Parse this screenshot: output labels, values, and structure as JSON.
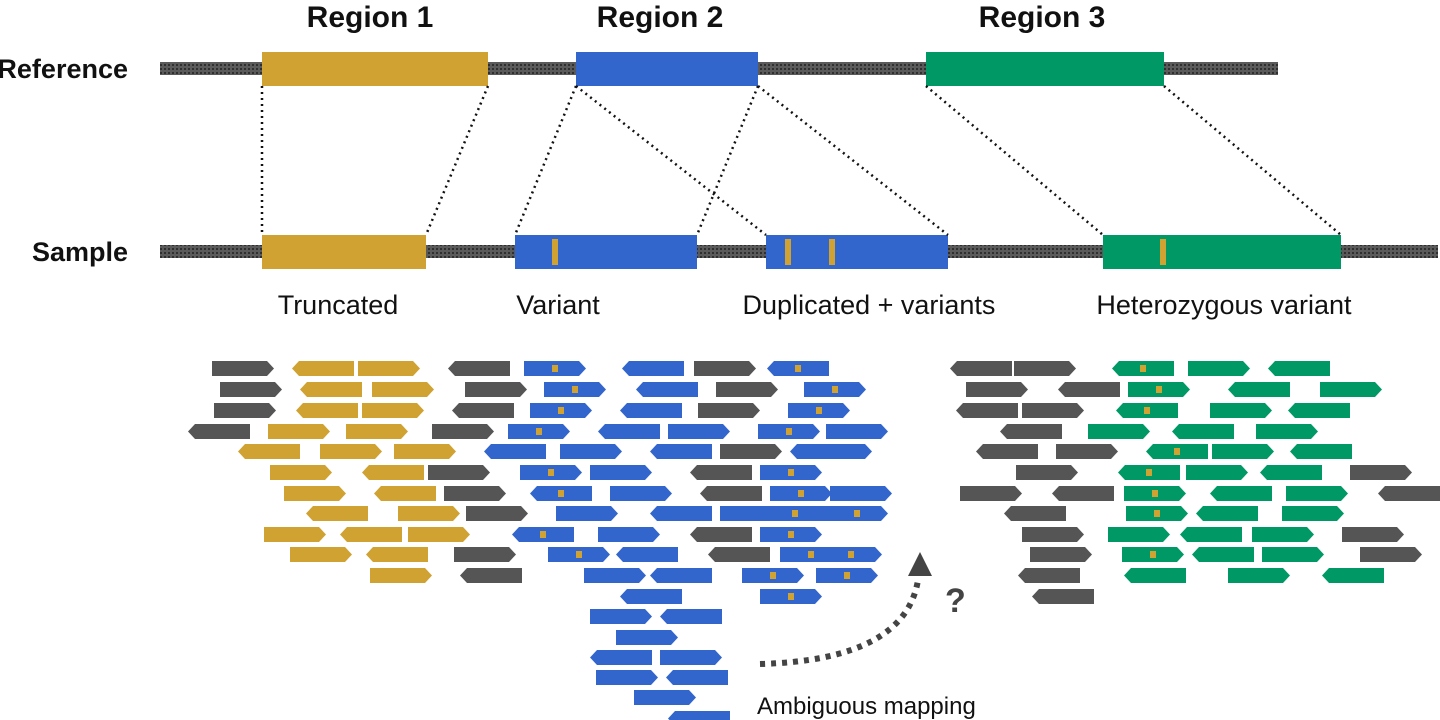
{
  "colors": {
    "region1": "#CFA232",
    "region2": "#3366CC",
    "region3": "#009966",
    "backbone": "#444444",
    "other_reads": "#555555",
    "variant_mark": "#CFA232"
  },
  "headers": {
    "region1": "Region 1",
    "region2": "Region 2",
    "region3": "Region 3"
  },
  "rows": {
    "reference": "Reference",
    "sample": "Sample"
  },
  "captions": {
    "truncated": "Truncated",
    "variant": "Variant",
    "duplicated": "Duplicated + variants",
    "heterozygous": "Heterozygous variant"
  },
  "annotation": {
    "ambiguous": "Ambiguous mapping",
    "question": "?"
  },
  "icons": {
    "read_arrow": "pentagon-arrow-shape",
    "dotted_arrow": "dotted-arrow-icon"
  }
}
